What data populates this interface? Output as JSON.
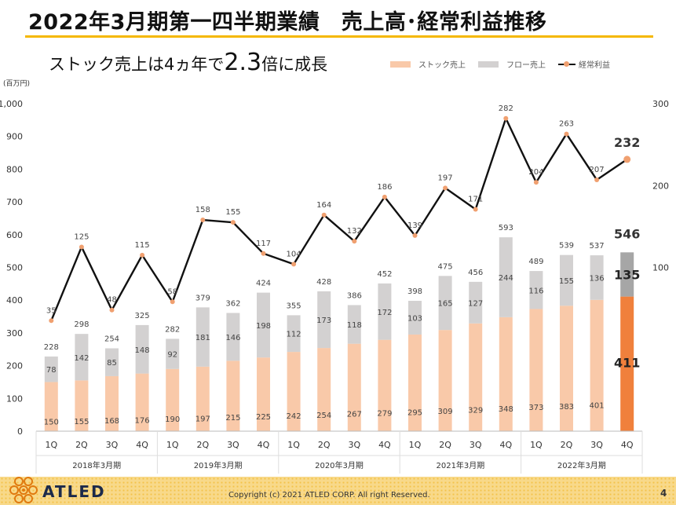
{
  "header": {
    "title": "2022年3月期第一四半期業績　売上高･経常利益推移",
    "subtitle_prefix": "ストック売上は4ヵ年で",
    "subtitle_emphasis": "2.3",
    "subtitle_suffix": "倍に成長"
  },
  "legend": {
    "stock": "ストック売上",
    "flow": "フロー売上",
    "profit": "経常利益"
  },
  "unit_label": "(百万円)",
  "footer": {
    "brand": "ATLED",
    "copyright": "Copyright (c) 2021 ATLED CORP. All right Reserved.",
    "page_number": "4"
  },
  "colors": {
    "stock": "#f9c9a9",
    "flow": "#d3d1d1",
    "profit_line": "#111111",
    "profit_marker": "#f0a070",
    "highlight_stock": "#f0803c",
    "highlight_flow": "#a6a6a6",
    "accent_rule": "#f5b800"
  },
  "chart_data": {
    "type": "bar",
    "stacked": true,
    "categories": [
      "1Q",
      "2Q",
      "3Q",
      "4Q",
      "1Q",
      "2Q",
      "3Q",
      "4Q",
      "1Q",
      "2Q",
      "3Q",
      "4Q",
      "1Q",
      "2Q",
      "3Q",
      "4Q",
      "1Q",
      "2Q",
      "3Q",
      "4Q"
    ],
    "groups": [
      {
        "label": "2018年3月期",
        "count": 4
      },
      {
        "label": "2019年3月期",
        "count": 4
      },
      {
        "label": "2020年3月期",
        "count": 4
      },
      {
        "label": "2021年3月期",
        "count": 4
      },
      {
        "label": "2022年3月期",
        "count": 4
      }
    ],
    "series": [
      {
        "name": "ストック売上",
        "axis": "left",
        "values": [
          150,
          155,
          168,
          176,
          190,
          197,
          215,
          225,
          242,
          254,
          267,
          279,
          295,
          309,
          329,
          348,
          373,
          383,
          401,
          411
        ]
      },
      {
        "name": "フロー売上",
        "axis": "left",
        "values": [
          78,
          142,
          85,
          148,
          92,
          181,
          146,
          198,
          112,
          173,
          118,
          172,
          103,
          165,
          127,
          244,
          116,
          155,
          136,
          135
        ]
      },
      {
        "name": "経常利益",
        "type": "line",
        "axis": "right",
        "values": [
          35,
          125,
          48,
          115,
          58,
          158,
          155,
          117,
          104,
          164,
          132,
          186,
          139,
          197,
          171,
          282,
          204,
          263,
          207,
          232
        ]
      }
    ],
    "totals": [
      228,
      298,
      254,
      325,
      282,
      379,
      362,
      424,
      355,
      428,
      386,
      452,
      398,
      475,
      456,
      593,
      489,
      539,
      537,
      546
    ],
    "left_axis": {
      "ticks": [
        "0",
        "100",
        "200",
        "300",
        "400",
        "500",
        "600",
        "700",
        "800",
        "900",
        "1,000"
      ],
      "ylim": [
        0,
        1000
      ]
    },
    "right_axis": {
      "ticks": [
        "100",
        "200",
        "300"
      ],
      "ylim": [
        -100,
        300
      ]
    },
    "highlight_index": 19,
    "grid": false,
    "legend_position": "top-right"
  }
}
